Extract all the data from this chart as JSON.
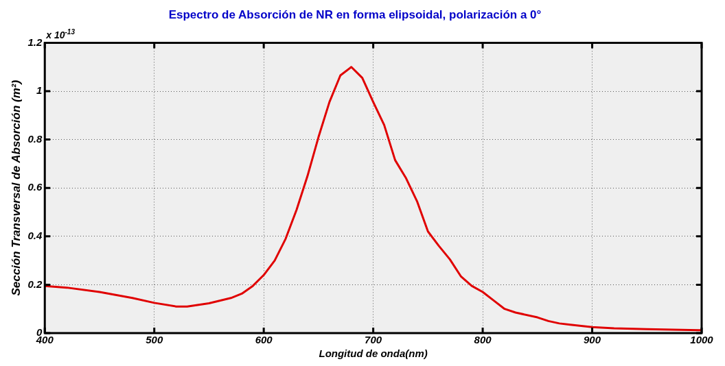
{
  "chart_data": {
    "type": "line",
    "title": "Espectro de Absorción de NR en forma elipsoidal, polarización a 0°",
    "xlabel": "Longitud de onda(nm)",
    "ylabel": "Sección Transversal de Absorción (m²)",
    "annotations": [
      "x 10$^{-13}$"
    ],
    "x": [
      400,
      420,
      450,
      480,
      500,
      520,
      530,
      550,
      570,
      580,
      590,
      600,
      610,
      620,
      630,
      640,
      650,
      660,
      670,
      680,
      690,
      700,
      710,
      720,
      730,
      740,
      750,
      760,
      770,
      780,
      790,
      800,
      810,
      820,
      830,
      850,
      860,
      870,
      880,
      900,
      920,
      950,
      1000
    ],
    "series": [
      {
        "color": "#e00000",
        "values": [
          0.195,
          0.188,
          0.17,
          0.145,
          0.125,
          0.11,
          0.11,
          0.123,
          0.145,
          0.163,
          0.195,
          0.24,
          0.3,
          0.39,
          0.51,
          0.65,
          0.81,
          0.955,
          1.065,
          1.1,
          1.055,
          0.955,
          0.86,
          0.715,
          0.64,
          0.545,
          0.42,
          0.36,
          0.305,
          0.235,
          0.195,
          0.17,
          0.135,
          0.1,
          0.085,
          0.065,
          0.05,
          0.04,
          0.035,
          0.025,
          0.02,
          0.016,
          0.012
        ]
      }
    ],
    "xlim": [
      400,
      1000
    ],
    "xticks": [
      400,
      500,
      600,
      700,
      800,
      900,
      1000
    ],
    "ylim": [
      0,
      1.2
    ],
    "yticks": [
      0,
      0.2,
      0.4,
      0.6,
      0.8,
      1,
      1.2
    ],
    "grid": true,
    "legend": false,
    "marker": "none",
    "line_style": "solid"
  }
}
